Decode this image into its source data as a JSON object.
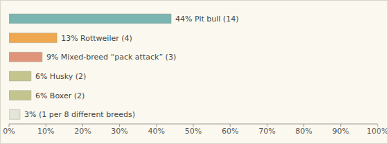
{
  "chart_data": {
    "type": "bar",
    "orientation": "horizontal",
    "values": [
      44,
      13,
      9,
      6,
      6,
      3
    ],
    "value_labels": [
      "44% Pit bull (14)",
      "13% Rottweiler (4)",
      "9% Mixed-breed “pack attack” (3)",
      "6% Husky (2)",
      "6% Boxer (2)",
      "3% (1 per 8 different breeds)"
    ],
    "colors": [
      "#7bb5b1",
      "#f0a850",
      "#e0957a",
      "#c4c48f",
      "#c4c48f",
      "#e2e5d8"
    ],
    "xlim": [
      0,
      100
    ],
    "xticks": [
      {
        "value": 0,
        "label": "0%"
      },
      {
        "value": 10,
        "label": "10%"
      },
      {
        "value": 20,
        "label": "20%"
      },
      {
        "value": 30,
        "label": "30%"
      },
      {
        "value": 40,
        "label": "40%"
      },
      {
        "value": 50,
        "label": "50%"
      },
      {
        "value": 60,
        "label": "60%"
      },
      {
        "value": 70,
        "label": "70%"
      },
      {
        "value": 80,
        "label": "80%"
      },
      {
        "value": 90,
        "label": "90%"
      },
      {
        "value": 100,
        "label": "100%"
      }
    ],
    "data_labels": true,
    "tick_labels": "x",
    "grid": false
  }
}
